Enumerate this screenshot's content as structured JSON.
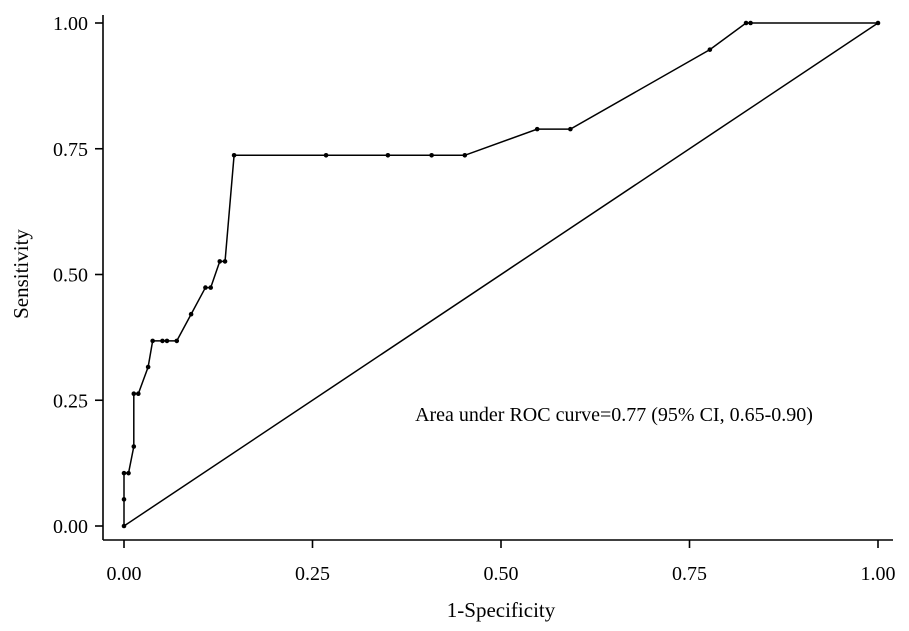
{
  "chart_data": {
    "type": "line",
    "title": "",
    "xlabel": "1-Specificity",
    "ylabel": "Sensitivity",
    "xlim": [
      0,
      1
    ],
    "ylim": [
      0,
      1
    ],
    "x_ticks": [
      "0.00",
      "0.25",
      "0.50",
      "0.75",
      "1.00"
    ],
    "y_ticks": [
      "0.00",
      "0.25",
      "0.50",
      "0.75",
      "1.00"
    ],
    "grid": false,
    "annotation": "Area under ROC curve=0.77 (95% CI, 0.65-0.90)",
    "series": [
      {
        "kind": "roc-curve",
        "x": [
          0.0,
          0.0,
          0.0,
          0.006,
          0.013,
          0.013,
          0.019,
          0.032,
          0.038,
          0.051,
          0.057,
          0.07,
          0.089,
          0.108,
          0.115,
          0.127,
          0.134,
          0.146,
          0.268,
          0.35,
          0.408,
          0.452,
          0.548,
          0.592,
          0.777,
          0.825,
          0.831,
          1.0
        ],
        "y": [
          0.0,
          0.053,
          0.105,
          0.105,
          0.158,
          0.263,
          0.263,
          0.316,
          0.368,
          0.368,
          0.368,
          0.368,
          0.421,
          0.474,
          0.474,
          0.526,
          0.526,
          0.737,
          0.737,
          0.737,
          0.737,
          0.737,
          0.789,
          0.789,
          0.947,
          1.0,
          1.0,
          1.0
        ]
      },
      {
        "kind": "reference-diagonal",
        "x": [
          0,
          1
        ],
        "y": [
          0,
          1
        ]
      }
    ]
  }
}
